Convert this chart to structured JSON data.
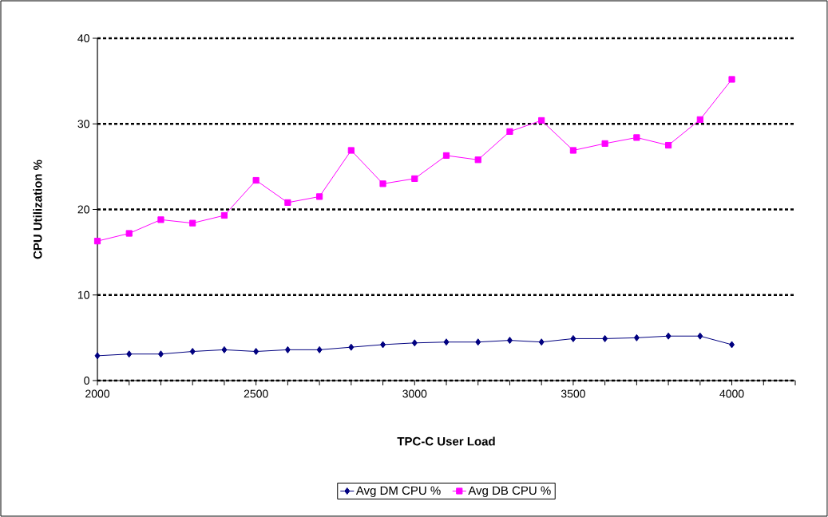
{
  "chart_data": {
    "type": "line",
    "xlabel": "TPC-C User Load",
    "ylabel": "CPU Utilization %",
    "x": [
      2000,
      2100,
      2200,
      2300,
      2400,
      2500,
      2600,
      2700,
      2800,
      2900,
      3000,
      3100,
      3200,
      3300,
      3400,
      3500,
      3600,
      3700,
      3800,
      3900,
      4000
    ],
    "series": [
      {
        "name": "Avg DM  CPU %",
        "color": "#000080",
        "marker": "diamond",
        "values": [
          2.9,
          3.1,
          3.1,
          3.4,
          3.6,
          3.4,
          3.6,
          3.6,
          3.9,
          4.2,
          4.4,
          4.5,
          4.5,
          4.7,
          4.5,
          4.9,
          4.9,
          5.0,
          5.2,
          5.2,
          4.2
        ]
      },
      {
        "name": "Avg DB CPU %",
        "color": "#ff00ff",
        "marker": "square",
        "values": [
          16.3,
          17.2,
          18.8,
          18.4,
          19.3,
          23.4,
          20.8,
          21.5,
          26.9,
          23.0,
          23.6,
          26.3,
          25.8,
          29.1,
          30.4,
          26.9,
          27.7,
          28.4,
          27.5,
          30.5,
          35.2
        ]
      }
    ],
    "xlim": [
      2000,
      4200
    ],
    "xticks": [
      2000,
      {
        "value": 2100,
        "label": null
      },
      {
        "value": 2200,
        "label": null
      },
      {
        "value": 2300,
        "label": null
      },
      {
        "value": 2400,
        "label": null
      },
      2500,
      {
        "value": 2600,
        "label": null
      },
      {
        "value": 2700,
        "label": null
      },
      {
        "value": 2800,
        "label": null
      },
      {
        "value": 2900,
        "label": null
      },
      3000,
      {
        "value": 3100,
        "label": null
      },
      {
        "value": 3200,
        "label": null
      },
      {
        "value": 3300,
        "label": null
      },
      {
        "value": 3400,
        "label": null
      },
      3500,
      {
        "value": 3600,
        "label": null
      },
      {
        "value": 3700,
        "label": null
      },
      {
        "value": 3800,
        "label": null
      },
      {
        "value": 3900,
        "label": null
      },
      4000,
      {
        "value": 4100,
        "label": null
      },
      {
        "value": 4200,
        "label": null
      }
    ],
    "ylim": [
      0,
      40
    ],
    "yticks": [
      0,
      10,
      20,
      30,
      40
    ],
    "grid": "y",
    "legend": "bottom",
    "line_style": "solid"
  }
}
